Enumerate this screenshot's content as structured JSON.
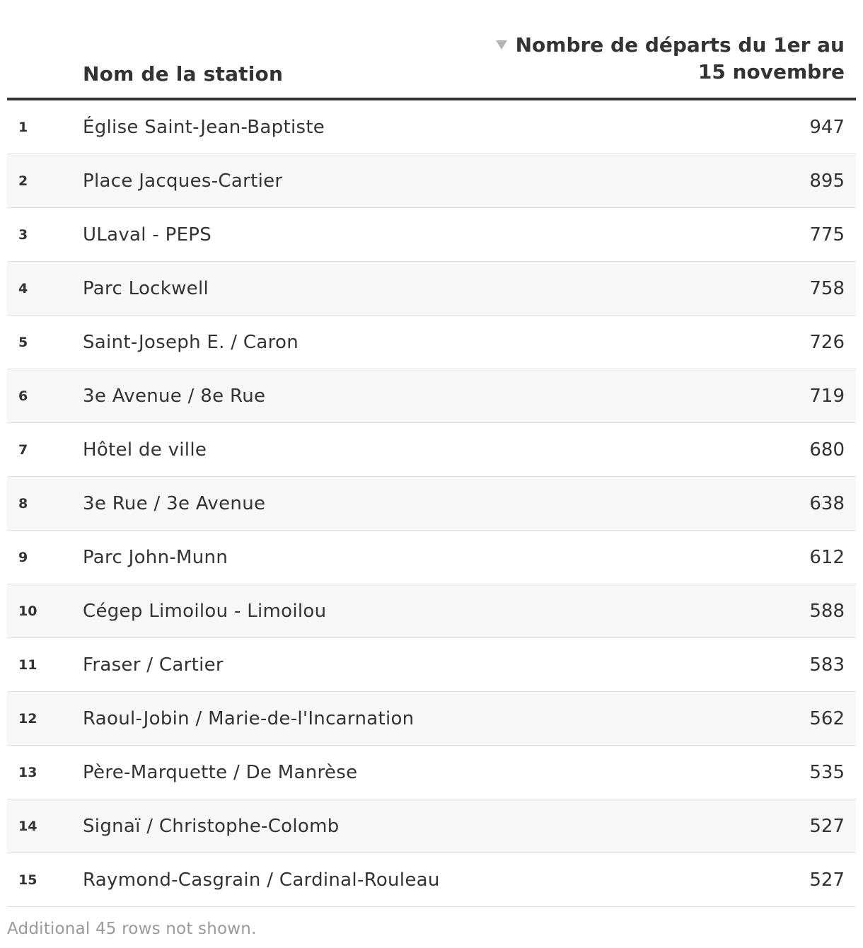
{
  "chart_data": {
    "type": "table",
    "columns": {
      "rank": "",
      "name": "Nom de la station",
      "value": "Nombre de départs du 1er au 15 novembre"
    },
    "sort": "descending",
    "rows": [
      {
        "rank": "1",
        "name": "Église Saint-Jean-Baptiste",
        "value": 947
      },
      {
        "rank": "2",
        "name": "Place Jacques-Cartier",
        "value": 895
      },
      {
        "rank": "3",
        "name": "ULaval - PEPS",
        "value": 775
      },
      {
        "rank": "4",
        "name": "Parc Lockwell",
        "value": 758
      },
      {
        "rank": "5",
        "name": "Saint-Joseph E. / Caron",
        "value": 726
      },
      {
        "rank": "6",
        "name": "3e Avenue / 8e Rue",
        "value": 719
      },
      {
        "rank": "7",
        "name": "Hôtel de ville",
        "value": 680
      },
      {
        "rank": "8",
        "name": "3e Rue / 3e Avenue",
        "value": 638
      },
      {
        "rank": "9",
        "name": "Parc John-Munn",
        "value": 612
      },
      {
        "rank": "10",
        "name": "Cégep Limoilou - Limoilou",
        "value": 588
      },
      {
        "rank": "11",
        "name": "Fraser / Cartier",
        "value": 583
      },
      {
        "rank": "12",
        "name": "Raoul-Jobin / Marie-de-l'Incarnation",
        "value": 562
      },
      {
        "rank": "13",
        "name": "Père-Marquette / De Manrèse",
        "value": 535
      },
      {
        "rank": "14",
        "name": "Signaï / Christophe-Colomb",
        "value": 527
      },
      {
        "rank": "15",
        "name": "Raymond-Casgrain / Cardinal-Rouleau",
        "value": 527
      }
    ],
    "footnote": "Additional 45 rows not shown."
  },
  "icons": {
    "sort": "sort-descending-icon"
  },
  "colors": {
    "text": "#333333",
    "header_rule": "#333333",
    "row_alt": "#f7f7f7",
    "row_border": "#e0e0e0",
    "sort_icon": "#b5b5b5",
    "footnote": "#9a9a9a"
  }
}
